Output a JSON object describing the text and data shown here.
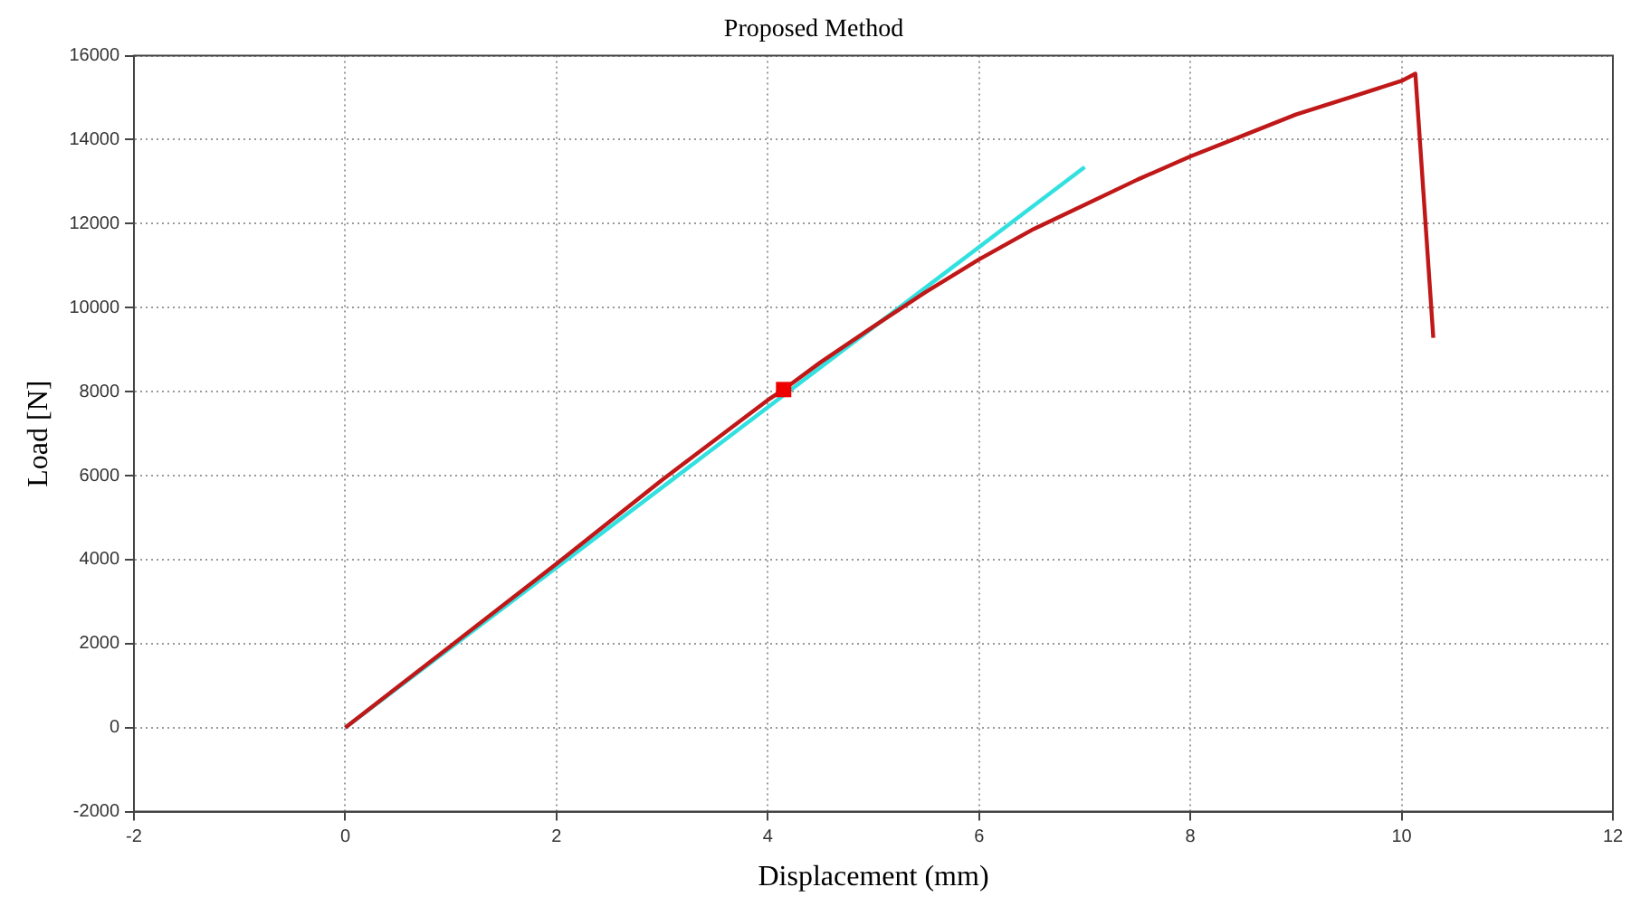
{
  "chart_data": {
    "type": "line",
    "title": "Proposed Method",
    "xlabel": "Displacement (mm)",
    "ylabel": "Load [N]",
    "xlim": [
      -2,
      12
    ],
    "xticks": [
      -2,
      0,
      2,
      4,
      6,
      8,
      10,
      12
    ],
    "ylim": [
      -2000,
      16000
    ],
    "yticks": [
      -2000,
      0,
      2000,
      4000,
      6000,
      8000,
      10000,
      12000,
      14000,
      16000
    ],
    "grid": true,
    "legend": false,
    "series": [
      {
        "color": "#c01818",
        "marker": "none",
        "x": [
          0,
          1,
          2,
          3,
          4,
          4.15,
          4.5,
          5,
          5.5,
          6,
          6.5,
          7,
          7.5,
          8,
          8.5,
          9,
          9.5,
          10,
          10.13,
          10.3
        ],
        "values": [
          0,
          1950,
          3900,
          5900,
          7800,
          8050,
          8700,
          9550,
          10380,
          11150,
          11850,
          12450,
          13050,
          13600,
          14100,
          14600,
          15000,
          15400,
          15570,
          9280
        ]
      },
      {
        "color": "#33e0e0",
        "marker": "none",
        "x": [
          0,
          7
        ],
        "values": [
          0,
          13350
        ]
      },
      {
        "type": "scatter",
        "color": "#ee0000",
        "marker": "square",
        "x": [
          4.15
        ],
        "values": [
          8050
        ]
      }
    ]
  }
}
